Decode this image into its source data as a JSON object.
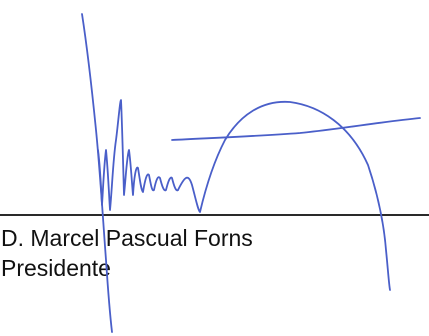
{
  "signature_block": {
    "name": "D. Marcel Pascual Forns",
    "title": "Presidente"
  },
  "colors": {
    "ink": "#4a5fc9",
    "text": "#111111",
    "rule": "#2a2a2a"
  }
}
